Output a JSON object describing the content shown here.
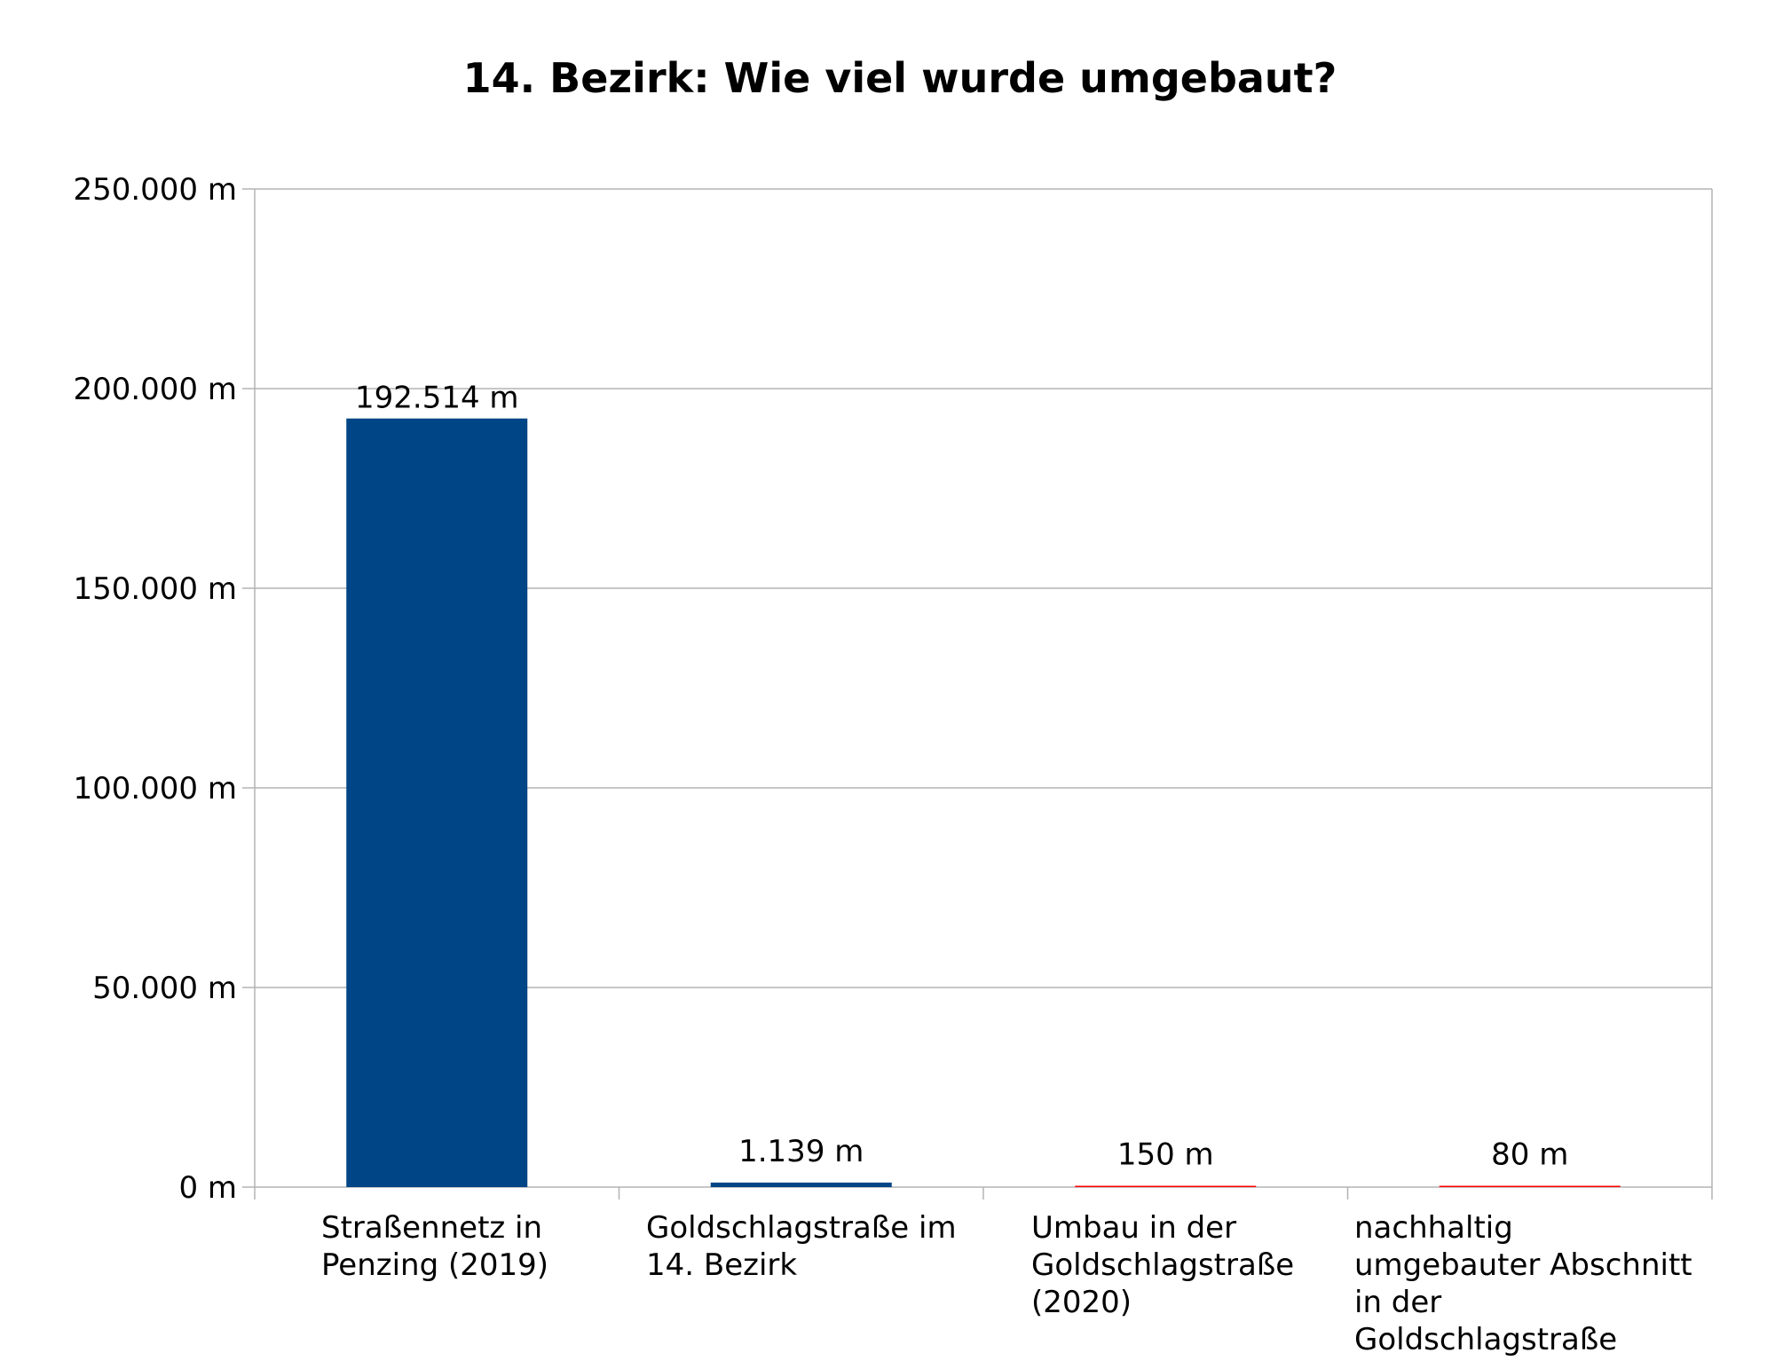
{
  "chart_data": {
    "type": "bar",
    "title": "14. Bezirk: Wie viel wurde umgebaut?",
    "xlabel": "",
    "ylabel": "",
    "ylim": [
      0,
      250000
    ],
    "yticks": [
      0,
      50000,
      100000,
      150000,
      200000,
      250000
    ],
    "ytick_labels": [
      "0 m",
      "50.000 m",
      "100.000 m",
      "150.000 m",
      "200.000 m",
      "250.000 m"
    ],
    "grid": true,
    "legend": "none",
    "categories": [
      [
        "Straßennetz in",
        "Penzing (2019)"
      ],
      [
        "Goldschlagstraße im",
        "14. Bezirk"
      ],
      [
        "Umbau in der",
        "Goldschlagstraße",
        "(2020)"
      ],
      [
        "nachhaltig",
        "umgebauter Abschnitt",
        "in der",
        "Goldschlagstraße"
      ]
    ],
    "values": [
      192514,
      1139,
      150,
      80
    ],
    "data_labels": [
      "192.514 m",
      "1.139 m",
      "150 m",
      "80 m"
    ],
    "colors": [
      "#004586",
      "#004586",
      "#ff0000",
      "#ff0000"
    ]
  }
}
